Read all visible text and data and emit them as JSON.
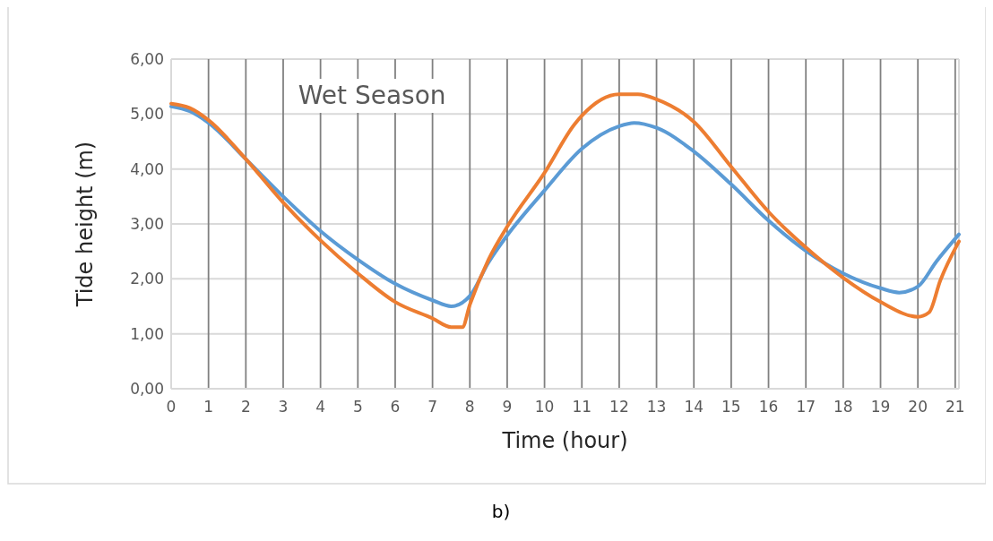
{
  "chart_data": {
    "type": "line",
    "title": "Wet Season",
    "xlabel": "Time (hour)",
    "ylabel": "Tide height (m)",
    "annotations": [
      "b)"
    ],
    "xlim": [
      0,
      21.1
    ],
    "xticks": [
      0,
      1,
      2,
      3,
      4,
      5,
      6,
      7,
      8,
      9,
      10,
      11,
      12,
      13,
      14,
      15,
      16,
      17,
      18,
      19,
      20,
      21
    ],
    "ylim": [
      0,
      6
    ],
    "yticks": [
      {
        "value": 0,
        "label": "0,00"
      },
      {
        "value": 1,
        "label": "1,00"
      },
      {
        "value": 2,
        "label": "2,00"
      },
      {
        "value": 3,
        "label": "3,00"
      },
      {
        "value": 4,
        "label": "4,00"
      },
      {
        "value": 5,
        "label": "5,00"
      },
      {
        "value": 6,
        "label": "6,00"
      }
    ],
    "grid": true,
    "marker": "none",
    "line_style": "solid",
    "series": [
      {
        "color": "#5b9bd5",
        "x": [
          0,
          0.5,
          1,
          2,
          3,
          4,
          5,
          6,
          7,
          7.5,
          8,
          8.5,
          9,
          10,
          11,
          12,
          12.4,
          13,
          14,
          15,
          16,
          17,
          18,
          19,
          19.5,
          20,
          20.5,
          21.1
        ],
        "values": [
          5.14,
          5.05,
          4.84,
          4.18,
          3.5,
          2.87,
          2.35,
          1.91,
          1.61,
          1.5,
          1.69,
          2.3,
          2.79,
          3.61,
          4.37,
          4.78,
          4.84,
          4.75,
          4.32,
          3.72,
          3.06,
          2.51,
          2.1,
          1.83,
          1.75,
          1.86,
          2.32,
          2.81
        ]
      },
      {
        "color": "#ed7d31",
        "x": [
          0,
          0.5,
          1,
          2,
          3,
          4,
          5,
          6,
          7,
          7.5,
          7.8,
          8,
          8.5,
          9,
          10,
          10.8,
          11,
          12,
          12.5,
          13,
          14,
          15,
          16,
          17,
          18,
          19,
          20,
          20.3,
          20.6,
          21.1
        ],
        "values": [
          5.19,
          5.11,
          4.89,
          4.18,
          3.39,
          2.7,
          2.1,
          1.58,
          1.28,
          1.12,
          1.12,
          1.53,
          2.35,
          2.95,
          3.93,
          4.81,
          4.97,
          5.36,
          5.36,
          5.27,
          4.86,
          4.04,
          3.22,
          2.57,
          2.02,
          1.58,
          1.31,
          1.39,
          1.97,
          2.68
        ]
      }
    ]
  }
}
